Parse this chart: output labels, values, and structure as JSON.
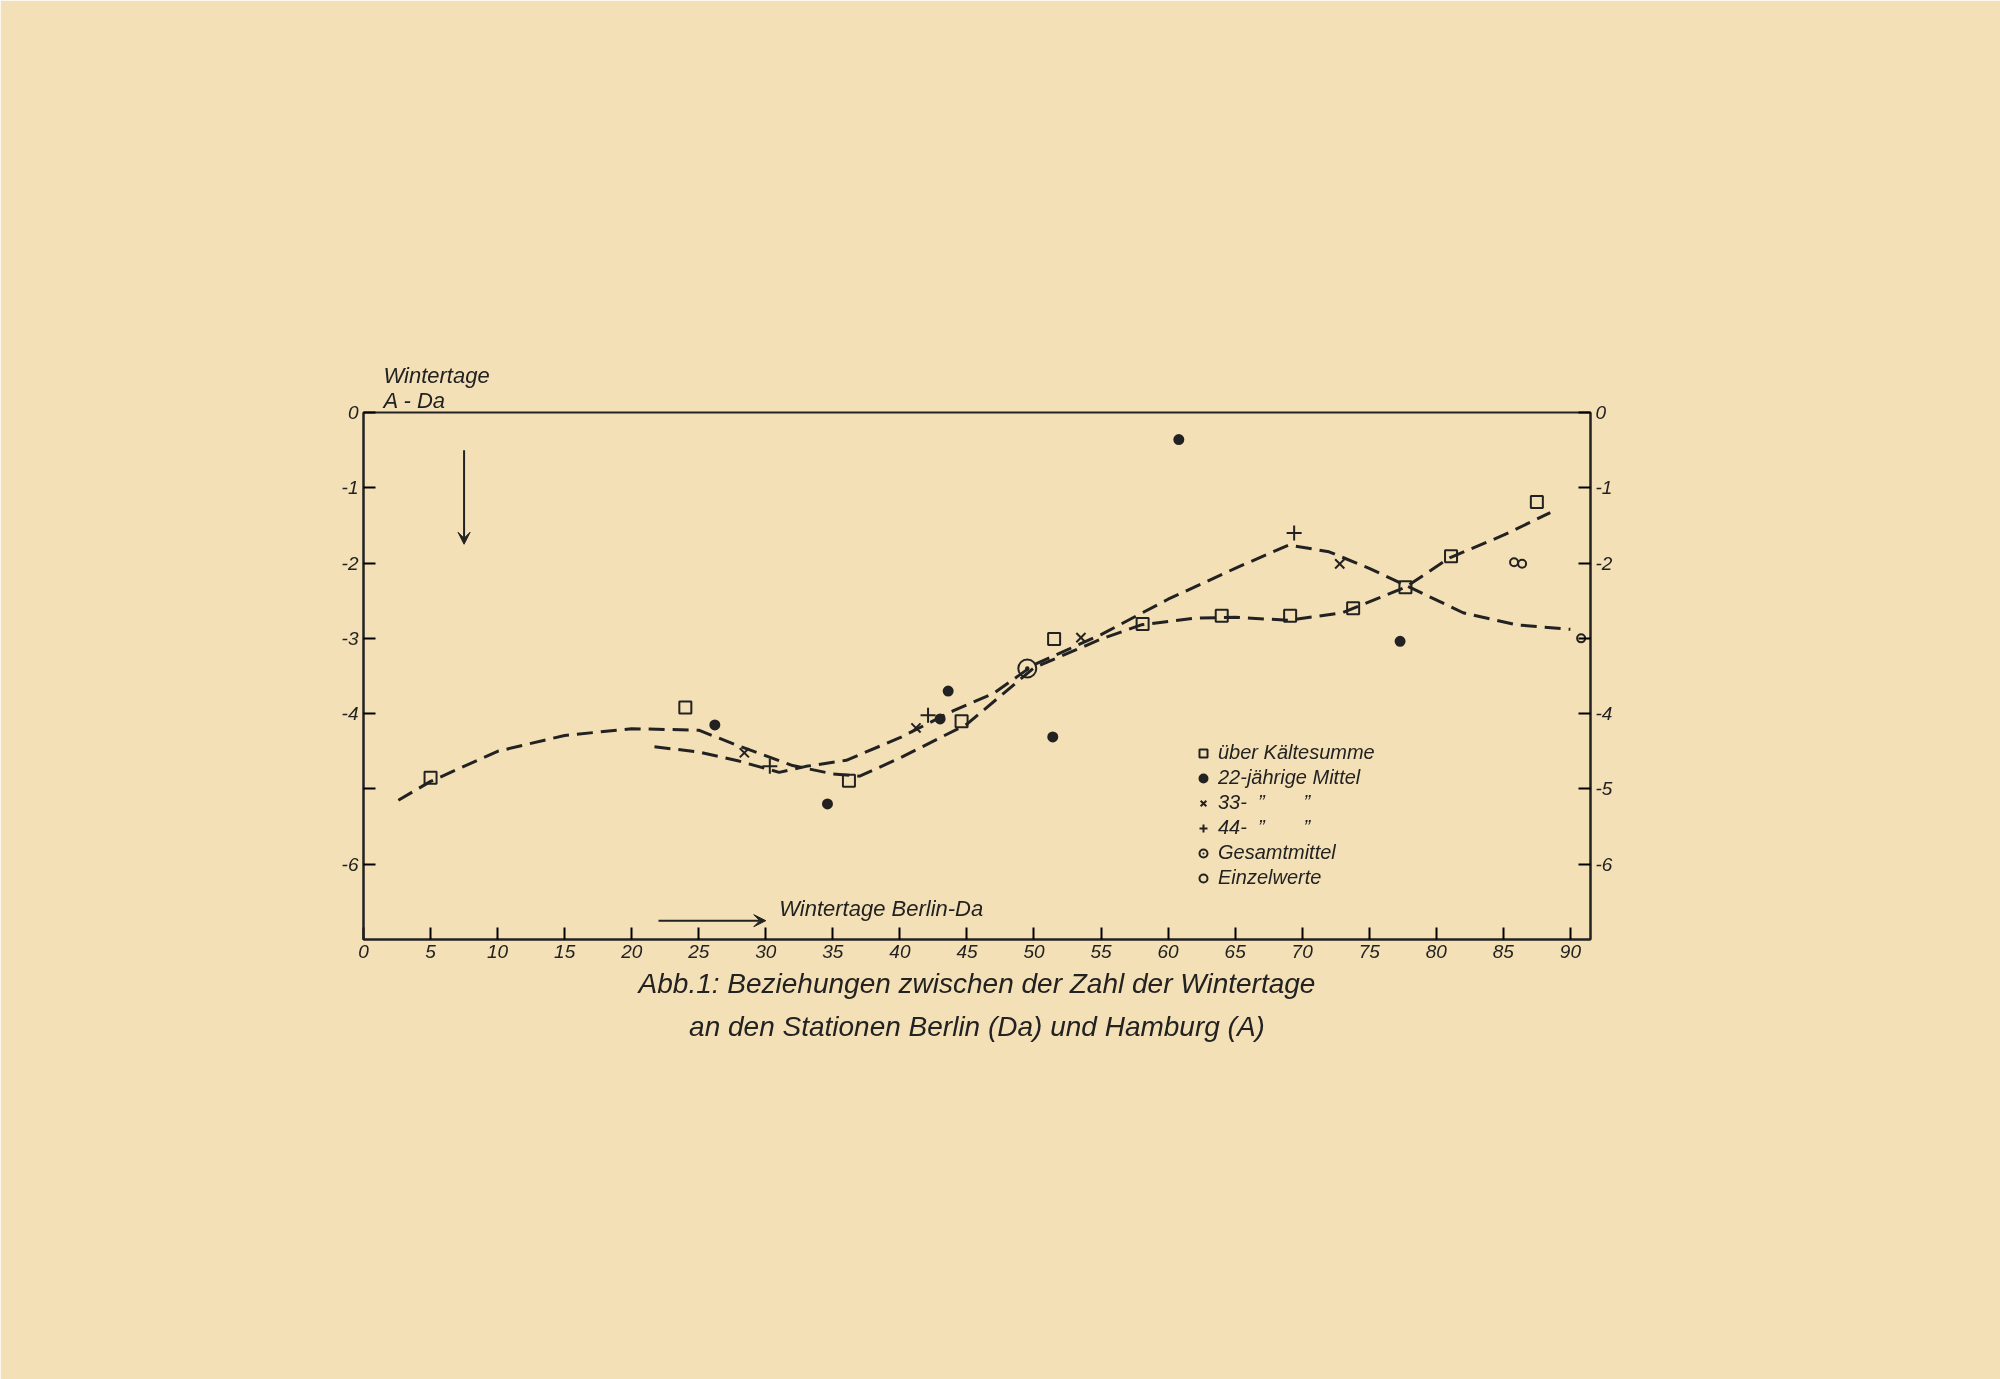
{
  "chart_data": {
    "type": "scatter",
    "title": "Abb.1: Beziehungen zwischen der Zahl der Wintertage\nan den Stationen Berlin (Da) und Hamburg (A)",
    "xlabel": "Wintertage Berlin-Da",
    "ylabel": "Wintertage\nA - Da",
    "xlim": [
      0,
      91.5
    ],
    "ylim": [
      -7,
      0
    ],
    "xticks": [
      0,
      5,
      10,
      15,
      20,
      25,
      30,
      35,
      40,
      45,
      50,
      55,
      60,
      65,
      70,
      75,
      80,
      85,
      90
    ],
    "yticks": [
      0,
      -1,
      -2,
      -3,
      -4,
      {
        "value": -5,
        "label": null
      },
      -6
    ],
    "y2lim": [
      -7,
      0
    ],
    "y2ticks": [
      0,
      -1,
      -2,
      {
        "value": -3,
        "label": null
      },
      -4,
      -5,
      -6
    ],
    "grid": false,
    "legend": "bottom right",
    "series": [
      {
        "name": "über Kältesumme",
        "marker": "square_open",
        "color": "#222222",
        "x": [
          5,
          24.0,
          36.2,
          44.6,
          51.5,
          58.1,
          64.0,
          69.1,
          73.8,
          77.7,
          81.1,
          87.5
        ],
        "values": [
          -4.85,
          -3.92,
          -4.89,
          -4.1,
          -3.01,
          -2.81,
          -2.7,
          -2.7,
          -2.6,
          -2.32,
          -1.91,
          -1.19
        ]
      },
      {
        "name": "22-jährige Mittel",
        "marker": "circle",
        "color": "#222222",
        "x": [
          26.2,
          34.6,
          43.0,
          43.6,
          51.4,
          60.8,
          77.3
        ],
        "values": [
          -4.15,
          -5.2,
          -4.07,
          -3.7,
          -4.31,
          -0.36,
          -3.04
        ]
      },
      {
        "name": "33-  ”       ”",
        "marker": "x",
        "color": "#222222",
        "x": [
          28.4,
          41.2,
          53.5,
          72.8
        ],
        "values": [
          -4.52,
          -4.19,
          -2.99,
          -2.01
        ]
      },
      {
        "name": "44-  ”       ”",
        "marker": "cross",
        "color": "#222222",
        "x": [
          30.3,
          42.1,
          69.4
        ],
        "values": [
          -4.7,
          -4.02,
          -1.6
        ]
      },
      {
        "name": "Gesamtmittel",
        "marker": "circle_dot",
        "color": "#222222",
        "x": [
          49.5
        ],
        "values": [
          -3.4
        ]
      },
      {
        "name": "Einzelwerte",
        "marker": "circle_open",
        "color": "#222222",
        "x": [
          85.8,
          86.4,
          90.8
        ],
        "values": [
          -1.99,
          -2.01,
          -3.0
        ]
      },
      {
        "type": "line",
        "line_style": "dashed",
        "color": "#222222",
        "x": [
          2.6,
          5,
          10,
          15,
          20,
          25,
          28,
          32,
          35,
          37,
          40,
          45,
          50,
          55,
          58,
          62,
          65,
          69,
          73,
          77.7,
          81,
          85,
          88.5
        ],
        "values": [
          -5.15,
          -4.9,
          -4.5,
          -4.29,
          -4.2,
          -4.22,
          -4.43,
          -4.69,
          -4.8,
          -4.83,
          -4.59,
          -4.14,
          -3.39,
          -3.01,
          -2.82,
          -2.73,
          -2.72,
          -2.76,
          -2.66,
          -2.32,
          -1.93,
          -1.63,
          -1.33
        ]
      },
      {
        "type": "line",
        "line_style": "dashed",
        "color": "#222222",
        "x": [
          21.7,
          25,
          28,
          31,
          33,
          36,
          40,
          44,
          47,
          50,
          55,
          60,
          65,
          69,
          72,
          75,
          78,
          82,
          86,
          90
        ],
        "values": [
          -4.44,
          -4.51,
          -4.63,
          -4.78,
          -4.7,
          -4.62,
          -4.32,
          -3.96,
          -3.73,
          -3.35,
          -2.95,
          -2.48,
          -2.07,
          -1.76,
          -1.85,
          -2.07,
          -2.32,
          -2.66,
          -2.82,
          -2.88
        ]
      }
    ]
  }
}
